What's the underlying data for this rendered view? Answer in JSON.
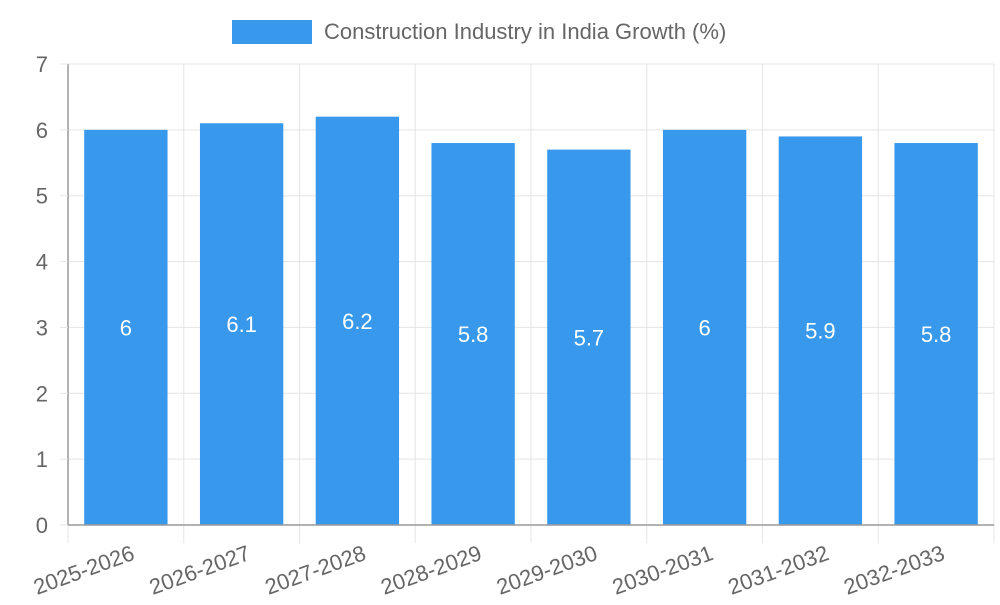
{
  "colors": {
    "bar": "#3898EC",
    "grid": "#e5e5e5",
    "axis": "#999999",
    "tick_text": "#666666",
    "label_text": "#ffffff"
  },
  "chart_data": {
    "type": "bar",
    "legend": {
      "label": "Construction Industry in India Growth (%)",
      "position": "top-center"
    },
    "categories": [
      "2025-2026",
      "2026-2027",
      "2027-2028",
      "2028-2029",
      "2029-2030",
      "2030-2031",
      "2031-2032",
      "2032-2033"
    ],
    "series": [
      {
        "name": "Construction Industry in India Growth (%)",
        "values": [
          6,
          6.1,
          6.2,
          5.8,
          5.7,
          6,
          5.9,
          5.8
        ]
      }
    ],
    "data_labels": [
      "6",
      "6.1",
      "6.2",
      "5.8",
      "5.7",
      "6",
      "5.9",
      "5.8"
    ],
    "y_ticks": [
      "0",
      "1",
      "2",
      "3",
      "4",
      "5",
      "6",
      "7"
    ],
    "ylim": [
      0,
      7
    ],
    "grid": true,
    "x_tick_rotation_deg": -20
  }
}
